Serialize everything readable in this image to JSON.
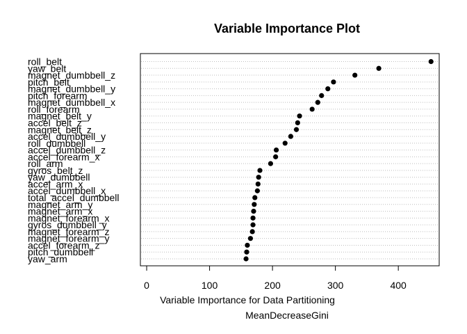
{
  "chart_data": {
    "type": "dotplot",
    "title": "Variable Importance Plot",
    "subtitle": "Variable Importance for Data Partitioning",
    "xlabel": "MeanDecreaseGini",
    "xlim": [
      -10,
      465
    ],
    "xticks": [
      0,
      100,
      200,
      300,
      400
    ],
    "grid": "dotted horizontal",
    "categories": [
      "roll_belt",
      "yaw_belt",
      "magnet_dumbbell_z",
      "pitch_belt",
      "magnet_dumbbell_y",
      "pitch_forearm",
      "magnet_dumbbell_x",
      "roll_forearm",
      "magnet_belt_y",
      "accel_belt_z",
      "magnet_belt_z",
      "accel_dumbbell_y",
      "roll_dumbbell",
      "accel_dumbbell_z",
      "accel_forearm_x",
      "roll_arm",
      "gyros_belt_z",
      "yaw_dumbbell",
      "accel_arm_x",
      "accel_dumbbell_x",
      "total_accel_dumbbell",
      "magnet_arm_y",
      "magnet_arm_x",
      "magnet_forearm_x",
      "gyros_dumbbell_y",
      "magnet_forearm_z",
      "magnet_forearm_y",
      "accel_forearm_z",
      "pitch_dumbbell",
      "yaw_arm"
    ],
    "values": [
      452,
      369,
      331,
      297,
      288,
      278,
      272,
      263,
      243,
      240,
      238,
      229,
      220,
      206,
      205,
      197,
      180,
      178,
      177,
      176,
      172,
      171,
      170,
      169,
      169,
      168,
      165,
      160,
      159,
      158
    ]
  }
}
